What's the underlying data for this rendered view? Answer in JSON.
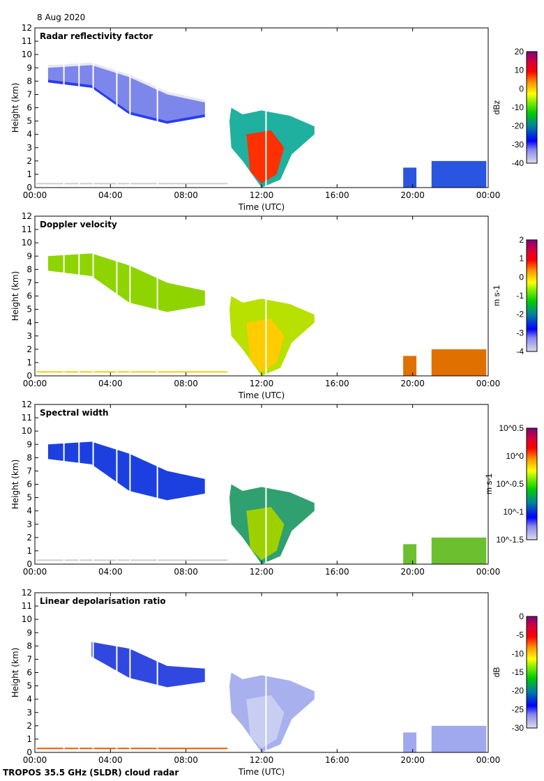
{
  "header": {
    "date": "8 Aug 2020"
  },
  "footer": {
    "caption": "TROPOS 35.5 GHz (SLDR) cloud radar"
  },
  "chart_data": [
    {
      "type": "heatmap",
      "title": "Radar reflectivity factor",
      "xlabel": "Time (UTC)",
      "ylabel": "Height (km)",
      "xticks": [
        "00:00",
        "04:00",
        "08:00",
        "12:00",
        "16:00",
        "20:00",
        "00:00"
      ],
      "xlim": [
        0,
        24
      ],
      "yticks": [
        "0",
        "1",
        "2",
        "3",
        "4",
        "5",
        "6",
        "7",
        "8",
        "9",
        "10",
        "11",
        "12"
      ],
      "ylim": [
        0,
        12
      ],
      "colorbar": {
        "label": "dBz",
        "ticks": [
          "-40",
          "-30",
          "-20",
          "-10",
          "0",
          "10",
          "20"
        ],
        "range": [
          -40,
          20
        ]
      }
    },
    {
      "type": "heatmap",
      "title": "Doppler velocity",
      "xlabel": "Time (UTC)",
      "ylabel": "Height (km)",
      "xticks": [
        "00:00",
        "04:00",
        "08:00",
        "12:00",
        "16:00",
        "20:00",
        "00:00"
      ],
      "xlim": [
        0,
        24
      ],
      "yticks": [
        "0",
        "1",
        "2",
        "3",
        "4",
        "5",
        "6",
        "7",
        "8",
        "9",
        "10",
        "11",
        "12"
      ],
      "ylim": [
        0,
        12
      ],
      "colorbar": {
        "label": "m s-1",
        "ticks": [
          "-4",
          "-3",
          "-2",
          "-1",
          "0",
          "1",
          "2"
        ],
        "range": [
          -4,
          2
        ]
      }
    },
    {
      "type": "heatmap",
      "title": "Spectral width",
      "xlabel": "",
      "ylabel": "Height (km)",
      "xticks": [
        "00:00",
        "04:00",
        "08:00",
        "12:00",
        "16:00",
        "20:00",
        "00:00"
      ],
      "xlim": [
        0,
        24
      ],
      "yticks": [
        "0",
        "1",
        "2",
        "3",
        "4",
        "5",
        "6",
        "7",
        "8",
        "9",
        "10",
        "11",
        "12"
      ],
      "ylim": [
        0,
        12
      ],
      "colorbar": {
        "label": "m s-1",
        "ticks": [
          "10^-1.5",
          "10^-1",
          "10^-0.5",
          "10^0",
          "10^0.5"
        ],
        "range": [
          -1.5,
          0.5
        ],
        "scale": "log"
      }
    },
    {
      "type": "heatmap",
      "title": "Linear depolarisation ratio",
      "xlabel": "Time (UTC)",
      "ylabel": "Height (km)",
      "xticks": [
        "00:00",
        "04:00",
        "08:00",
        "12:00",
        "16:00",
        "20:00",
        "00:00"
      ],
      "xlim": [
        0,
        24
      ],
      "yticks": [
        "0",
        "1",
        "2",
        "3",
        "4",
        "5",
        "6",
        "7",
        "8",
        "9",
        "10",
        "11",
        "12"
      ],
      "ylim": [
        0,
        12
      ],
      "colorbar": {
        "label": "dB",
        "ticks": [
          "-30",
          "-25",
          "-20",
          "-15",
          "-10",
          "-5",
          "0"
        ],
        "range": [
          -30,
          0
        ]
      }
    }
  ]
}
